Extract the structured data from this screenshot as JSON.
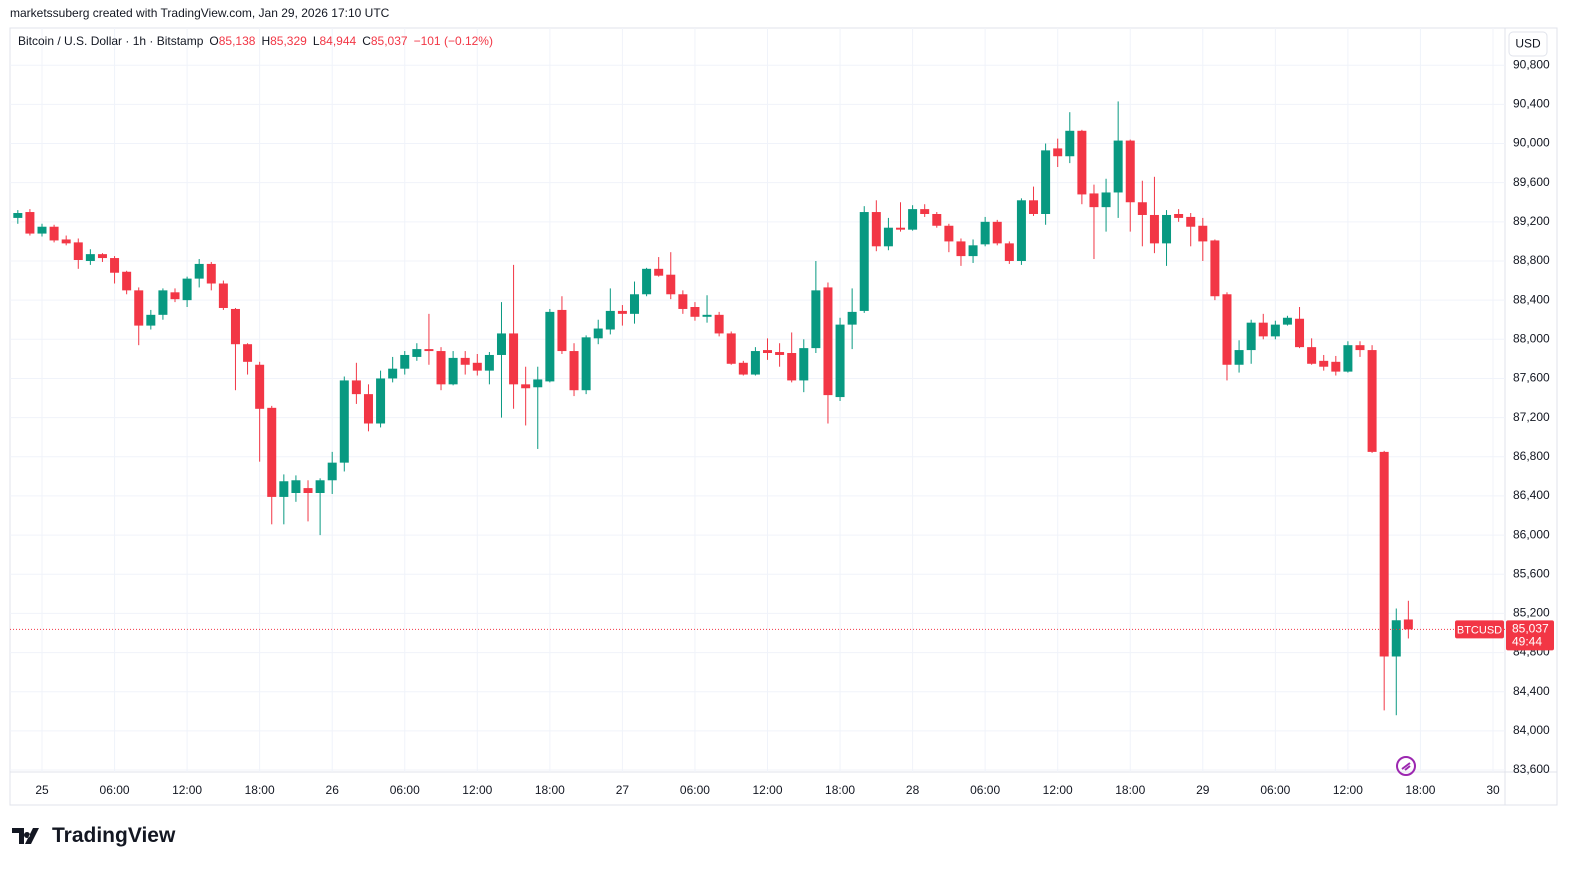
{
  "header": {
    "credit": "marketssuberg created with TradingView.com, Jan 29, 2026 17:10 UTC"
  },
  "chart_data": {
    "type": "candlestick",
    "title": "Bitcoin / U.S. Dollar · 1h · Bitstamp",
    "legend": [
      {
        "key": "O",
        "value": "85,138"
      },
      {
        "key": "H",
        "value": "85,329"
      },
      {
        "key": "L",
        "value": "84,944"
      },
      {
        "key": "C",
        "value": "85,037"
      },
      {
        "key": "",
        "value": "−101 (−0.12%)"
      }
    ],
    "currency": "USD",
    "symbol_tag": "BTCUSD",
    "last_price": {
      "value": 85037,
      "label": "85,037"
    },
    "countdown": "49:44",
    "up_color": "#089981",
    "down_color": "#f23645",
    "grid": true,
    "x": [
      "24 22:00",
      "24 23:00",
      "25 00:00",
      "25 01:00",
      "25 02:00",
      "25 03:00",
      "25 04:00",
      "25 05:00",
      "25 06:00",
      "25 07:00",
      "25 08:00",
      "25 09:00",
      "25 10:00",
      "25 11:00",
      "25 12:00",
      "25 13:00",
      "25 14:00",
      "25 15:00",
      "25 16:00",
      "25 17:00",
      "25 18:00",
      "25 19:00",
      "25 20:00",
      "25 21:00",
      "25 22:00",
      "25 23:00",
      "26 00:00",
      "26 01:00",
      "26 02:00",
      "26 03:00",
      "26 04:00",
      "26 05:00",
      "26 06:00",
      "26 07:00",
      "26 08:00",
      "26 09:00",
      "26 10:00",
      "26 11:00",
      "26 12:00",
      "26 13:00",
      "26 14:00",
      "26 15:00",
      "26 16:00",
      "26 17:00",
      "26 18:00",
      "26 19:00",
      "26 20:00",
      "26 21:00",
      "26 22:00",
      "26 23:00",
      "27 00:00",
      "27 01:00",
      "27 02:00",
      "27 03:00",
      "27 04:00",
      "27 05:00",
      "27 06:00",
      "27 07:00",
      "27 08:00",
      "27 09:00",
      "27 10:00",
      "27 11:00",
      "27 12:00",
      "27 13:00",
      "27 14:00",
      "27 15:00",
      "27 16:00",
      "27 17:00",
      "27 18:00",
      "27 19:00",
      "27 20:00",
      "27 21:00",
      "27 22:00",
      "27 23:00",
      "28 00:00",
      "28 01:00",
      "28 02:00",
      "28 03:00",
      "28 04:00",
      "28 05:00",
      "28 06:00",
      "28 07:00",
      "28 08:00",
      "28 09:00",
      "28 10:00",
      "28 11:00",
      "28 12:00",
      "28 13:00",
      "28 14:00",
      "28 15:00",
      "28 16:00",
      "28 17:00",
      "28 18:00",
      "28 19:00",
      "28 20:00",
      "28 21:00",
      "28 22:00",
      "28 23:00",
      "29 00:00",
      "29 01:00",
      "29 02:00",
      "29 03:00",
      "29 04:00",
      "29 05:00",
      "29 06:00",
      "29 07:00",
      "29 08:00",
      "29 09:00",
      "29 10:00",
      "29 11:00",
      "29 12:00",
      "29 13:00",
      "29 14:00",
      "29 15:00",
      "29 16:00",
      "29 17:00"
    ],
    "open": [
      89240,
      89300,
      89080,
      89150,
      89020,
      88990,
      88800,
      88870,
      88830,
      88690,
      88500,
      88140,
      88250,
      88480,
      88400,
      88620,
      88770,
      88570,
      88310,
      87950,
      87740,
      87300,
      86390,
      86430,
      86480,
      86430,
      86560,
      86740,
      87580,
      87440,
      87140,
      87600,
      87700,
      87820,
      87900,
      87880,
      87540,
      87810,
      87760,
      87680,
      87840,
      88060,
      87540,
      87510,
      87570,
      88300,
      87880,
      87480,
      88010,
      88100,
      88290,
      88260,
      88460,
      88720,
      88660,
      88460,
      88330,
      88230,
      88250,
      88060,
      87760,
      87640,
      87890,
      87870,
      87860,
      87580,
      87910,
      88530,
      87410,
      88150,
      88290,
      89300,
      88950,
      89140,
      89120,
      89330,
      89280,
      89160,
      89000,
      88850,
      88970,
      89200,
      88980,
      88800,
      89420,
      89280,
      89950,
      89870,
      90130,
      89490,
      89350,
      89500,
      90030,
      89400,
      89270,
      88980,
      89280,
      89250,
      89160,
      89010,
      88460,
      87740,
      87890,
      88170,
      88030,
      88150,
      88210,
      87920,
      87780,
      87770,
      87670,
      87940,
      87890,
      86850,
      84760,
      85138
    ],
    "high": [
      89320,
      89330,
      89180,
      89170,
      89060,
      89030,
      88920,
      88880,
      88850,
      88700,
      88530,
      88300,
      88520,
      88520,
      88640,
      88820,
      88790,
      88600,
      88320,
      87960,
      87770,
      87320,
      86620,
      86610,
      86560,
      86580,
      86850,
      87620,
      87760,
      87540,
      87680,
      87820,
      87880,
      87960,
      88260,
      87920,
      87880,
      87880,
      87850,
      87870,
      88380,
      88760,
      87720,
      87720,
      88310,
      88440,
      87960,
      88040,
      88200,
      88520,
      88350,
      88590,
      88730,
      88840,
      88890,
      88500,
      88380,
      88450,
      88280,
      88080,
      87780,
      87920,
      88010,
      87960,
      88070,
      88000,
      88800,
      88580,
      88220,
      88520,
      89360,
      89420,
      89240,
      89400,
      89370,
      89380,
      89300,
      89180,
      89030,
      89020,
      89250,
      89220,
      89000,
      89440,
      89560,
      90000,
      90050,
      90320,
      90140,
      89580,
      89640,
      90430,
      90040,
      89620,
      89660,
      89320,
      89330,
      89290,
      89240,
      89020,
      88480,
      87990,
      88200,
      88260,
      88190,
      88240,
      88330,
      88010,
      87840,
      87830,
      87980,
      87980,
      87940,
      86860,
      85250,
      85329
    ],
    "low": [
      89180,
      89060,
      89050,
      88990,
      88960,
      88720,
      88760,
      88790,
      88570,
      88460,
      87940,
      88100,
      88200,
      88380,
      88330,
      88530,
      88500,
      88300,
      87480,
      87640,
      86750,
      86110,
      86110,
      86340,
      86140,
      86000,
      86420,
      86650,
      87340,
      87060,
      87100,
      87560,
      87640,
      87780,
      87740,
      87480,
      87530,
      87640,
      87630,
      87540,
      87200,
      87290,
      87120,
      86880,
      87560,
      87850,
      87420,
      87440,
      87950,
      88050,
      88140,
      88160,
      88440,
      88640,
      88410,
      88260,
      88190,
      88170,
      88030,
      87740,
      87630,
      87630,
      87790,
      87720,
      87560,
      87460,
      87860,
      87140,
      87370,
      87900,
      88270,
      88900,
      88910,
      89100,
      89110,
      89250,
      89140,
      88890,
      88750,
      88780,
      88950,
      88960,
      88770,
      88760,
      89260,
      89170,
      89760,
      89800,
      89380,
      88820,
      89100,
      89240,
      89100,
      88950,
      88880,
      88750,
      89200,
      88950,
      88800,
      88400,
      87580,
      87660,
      87750,
      88000,
      88000,
      88140,
      87910,
      87740,
      87680,
      87630,
      87660,
      87820,
      86840,
      84210,
      84160,
      84944
    ],
    "close": [
      89290,
      89080,
      89150,
      89010,
      88980,
      88810,
      88870,
      88830,
      88680,
      88500,
      88140,
      88250,
      88500,
      88410,
      88620,
      88770,
      88570,
      88320,
      87950,
      87770,
      87290,
      86390,
      86550,
      86560,
      86430,
      86560,
      86740,
      87580,
      87440,
      87140,
      87600,
      87700,
      87840,
      87900,
      87880,
      87540,
      87810,
      87740,
      87680,
      87840,
      88060,
      87540,
      87500,
      87590,
      88280,
      87880,
      87480,
      88020,
      88110,
      88290,
      88260,
      88460,
      88720,
      88650,
      88460,
      88310,
      88230,
      88250,
      88060,
      87750,
      87640,
      87880,
      87860,
      87840,
      87580,
      87910,
      88500,
      87430,
      88150,
      88280,
      89300,
      88950,
      89140,
      89120,
      89330,
      89280,
      89160,
      89000,
      88850,
      88960,
      89200,
      88980,
      88800,
      89420,
      89280,
      89930,
      89870,
      90130,
      89480,
      89350,
      89500,
      90030,
      89400,
      89270,
      88980,
      89270,
      89240,
      89150,
      89000,
      88440,
      87740,
      87890,
      88170,
      88030,
      88150,
      88220,
      87920,
      87750,
      87720,
      87670,
      87940,
      87890,
      86850,
      84760,
      85130,
      85037
    ],
    "ylim": [
      83580,
      91180
    ],
    "yticks": [
      {
        "value": 83600,
        "label": "83,600"
      },
      {
        "value": 84000,
        "label": "84,000"
      },
      {
        "value": 84400,
        "label": "84,400"
      },
      {
        "value": 84800,
        "label": "84,800"
      },
      {
        "value": 85200,
        "label": "85,200"
      },
      {
        "value": 85600,
        "label": "85,600"
      },
      {
        "value": 86000,
        "label": "86,000"
      },
      {
        "value": 86400,
        "label": "86,400"
      },
      {
        "value": 86800,
        "label": "86,800"
      },
      {
        "value": 87200,
        "label": "87,200"
      },
      {
        "value": 87600,
        "label": "87,600"
      },
      {
        "value": 88000,
        "label": "88,000"
      },
      {
        "value": 88400,
        "label": "88,400"
      },
      {
        "value": 88800,
        "label": "88,800"
      },
      {
        "value": 89200,
        "label": "89,200"
      },
      {
        "value": 89600,
        "label": "89,600"
      },
      {
        "value": 90000,
        "label": "90,000"
      },
      {
        "value": 90400,
        "label": "90,400"
      },
      {
        "value": 90800,
        "label": "90,800"
      }
    ],
    "xticks": [
      {
        "value": "25 00:00",
        "label": "25"
      },
      {
        "value": "25 06:00",
        "label": "06:00"
      },
      {
        "value": "25 12:00",
        "label": "12:00"
      },
      {
        "value": "25 18:00",
        "label": "18:00"
      },
      {
        "value": "26 00:00",
        "label": "26"
      },
      {
        "value": "26 06:00",
        "label": "06:00"
      },
      {
        "value": "26 12:00",
        "label": "12:00"
      },
      {
        "value": "26 18:00",
        "label": "18:00"
      },
      {
        "value": "27 00:00",
        "label": "27"
      },
      {
        "value": "27 06:00",
        "label": "06:00"
      },
      {
        "value": "27 12:00",
        "label": "12:00"
      },
      {
        "value": "27 18:00",
        "label": "18:00"
      },
      {
        "value": "28 00:00",
        "label": "28"
      },
      {
        "value": "28 06:00",
        "label": "06:00"
      },
      {
        "value": "28 12:00",
        "label": "12:00"
      },
      {
        "value": "28 18:00",
        "label": "18:00"
      },
      {
        "value": "29 00:00",
        "label": "29"
      },
      {
        "value": "29 06:00",
        "label": "06:00"
      },
      {
        "value": "29 12:00",
        "label": "12:00"
      },
      {
        "value": "29 18:00",
        "label": "18:00"
      },
      {
        "value": "30 00:00",
        "label": "30"
      }
    ]
  },
  "footer": {
    "brand": "TradingView"
  }
}
